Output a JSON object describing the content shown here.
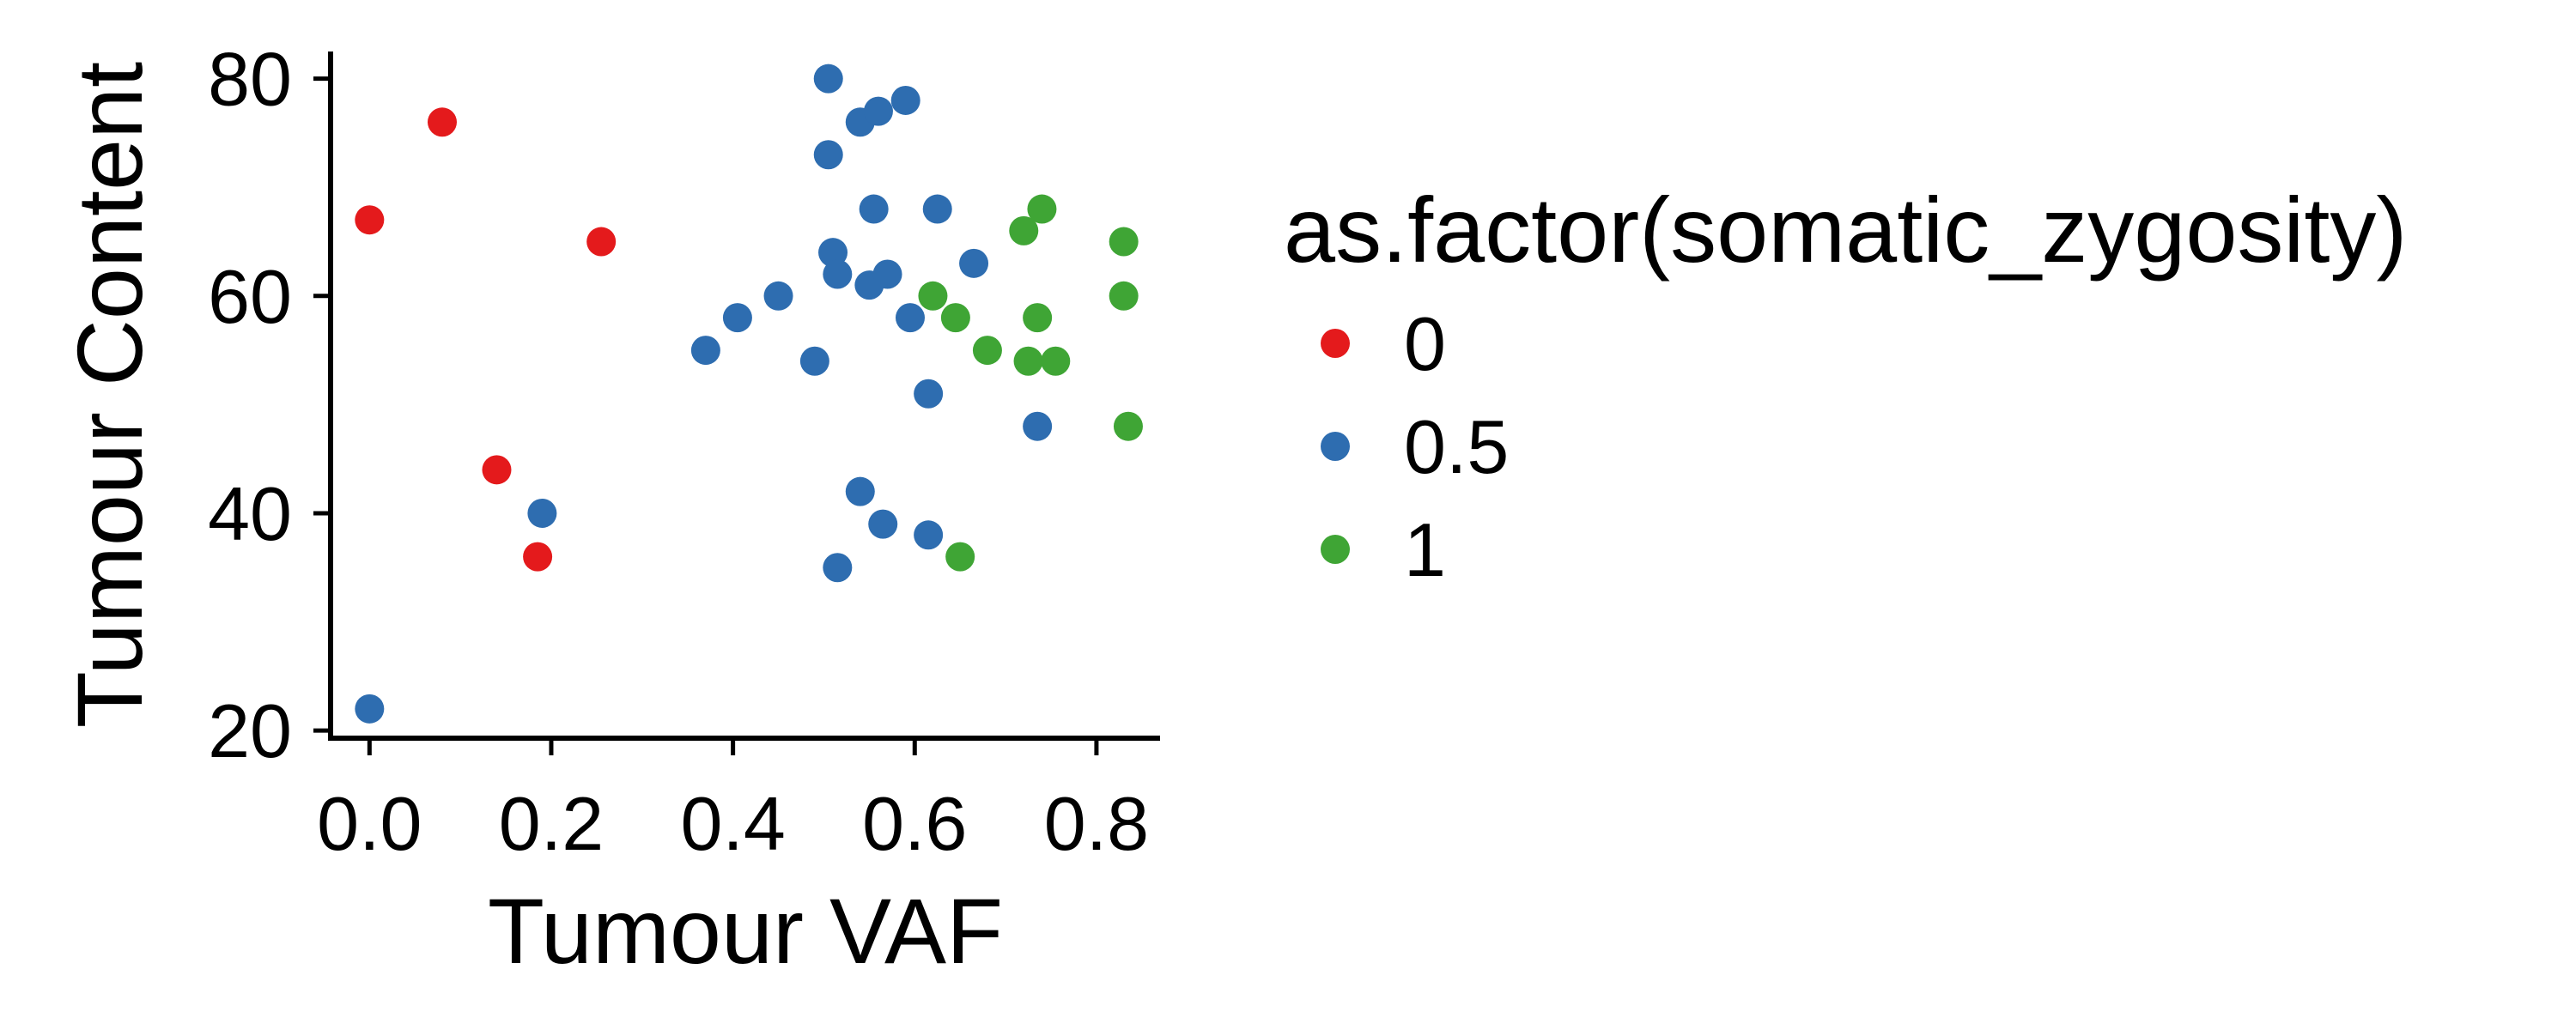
{
  "chart_data": {
    "type": "scatter",
    "xlabel": "Tumour VAF",
    "ylabel": "Tumour Content",
    "xlim": [
      -0.04,
      0.87
    ],
    "ylim": [
      19.3,
      82.5
    ],
    "xticks": [
      0.0,
      0.2,
      0.4,
      0.6,
      0.8
    ],
    "xtick_labels": [
      "0.0",
      "0.2",
      "0.4",
      "0.6",
      "0.8"
    ],
    "yticks": [
      20,
      40,
      60,
      80
    ],
    "ytick_labels": [
      "20",
      "40",
      "60",
      "80"
    ],
    "grid": false,
    "legend": {
      "title": "as.factor(somatic_zygosity)",
      "placement": "right"
    },
    "series": [
      {
        "name": "0",
        "color": "#E41A1C",
        "points": [
          [
            0.0,
            67
          ],
          [
            0.08,
            76
          ],
          [
            0.255,
            65
          ],
          [
            0.14,
            44
          ],
          [
            0.185,
            36
          ]
        ]
      },
      {
        "name": "0.5",
        "color": "#2E6DB0",
        "points": [
          [
            0.0,
            22
          ],
          [
            0.19,
            40
          ],
          [
            0.37,
            55
          ],
          [
            0.405,
            58
          ],
          [
            0.45,
            60
          ],
          [
            0.49,
            54
          ],
          [
            0.505,
            80
          ],
          [
            0.505,
            73
          ],
          [
            0.51,
            64
          ],
          [
            0.515,
            62
          ],
          [
            0.54,
            76
          ],
          [
            0.56,
            77
          ],
          [
            0.59,
            78
          ],
          [
            0.555,
            68
          ],
          [
            0.55,
            61
          ],
          [
            0.57,
            62
          ],
          [
            0.595,
            58
          ],
          [
            0.615,
            51
          ],
          [
            0.625,
            68
          ],
          [
            0.665,
            63
          ],
          [
            0.735,
            48
          ],
          [
            0.54,
            42
          ],
          [
            0.565,
            39
          ],
          [
            0.615,
            38
          ],
          [
            0.515,
            35
          ]
        ]
      },
      {
        "name": "1",
        "color": "#3FA535",
        "points": [
          [
            0.62,
            60
          ],
          [
            0.645,
            58
          ],
          [
            0.68,
            55
          ],
          [
            0.72,
            66
          ],
          [
            0.74,
            68
          ],
          [
            0.735,
            58
          ],
          [
            0.725,
            54
          ],
          [
            0.755,
            54
          ],
          [
            0.83,
            65
          ],
          [
            0.83,
            60
          ],
          [
            0.835,
            48
          ],
          [
            0.65,
            36
          ]
        ]
      }
    ]
  }
}
